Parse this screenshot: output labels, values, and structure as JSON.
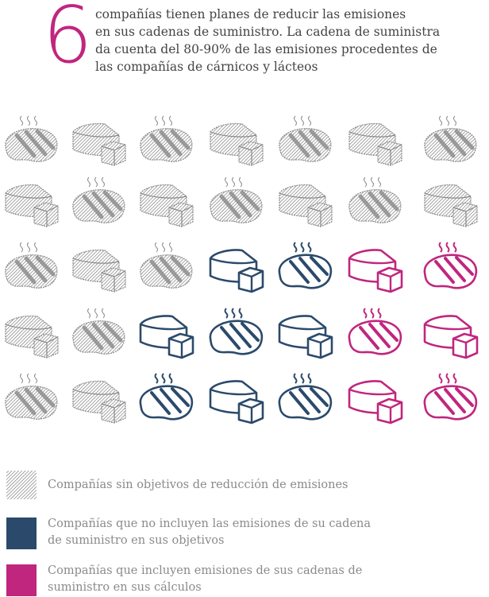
{
  "header": {
    "number": "6",
    "lines": [
      "compañías  tienen planes de reducir las emisiones",
      "en sus cadenas de suministro. La cadena de suministra",
      "da cuenta del 80-90% de las emisiones procedentes de",
      "las compañías de cárnicos y lácteos"
    ]
  },
  "legend": [
    {
      "lines": [
        "Compañías sin objetivos de reducción de emisiones"
      ]
    },
    {
      "lines": [
        "Compañías que no incluyen las emisiones de su cadena",
        "de suministro en sus objetivos"
      ]
    },
    {
      "lines": [
        "Compañías que incluyen emisiones de sus cadenas de",
        "suministro en sus cálculos"
      ]
    }
  ]
}
